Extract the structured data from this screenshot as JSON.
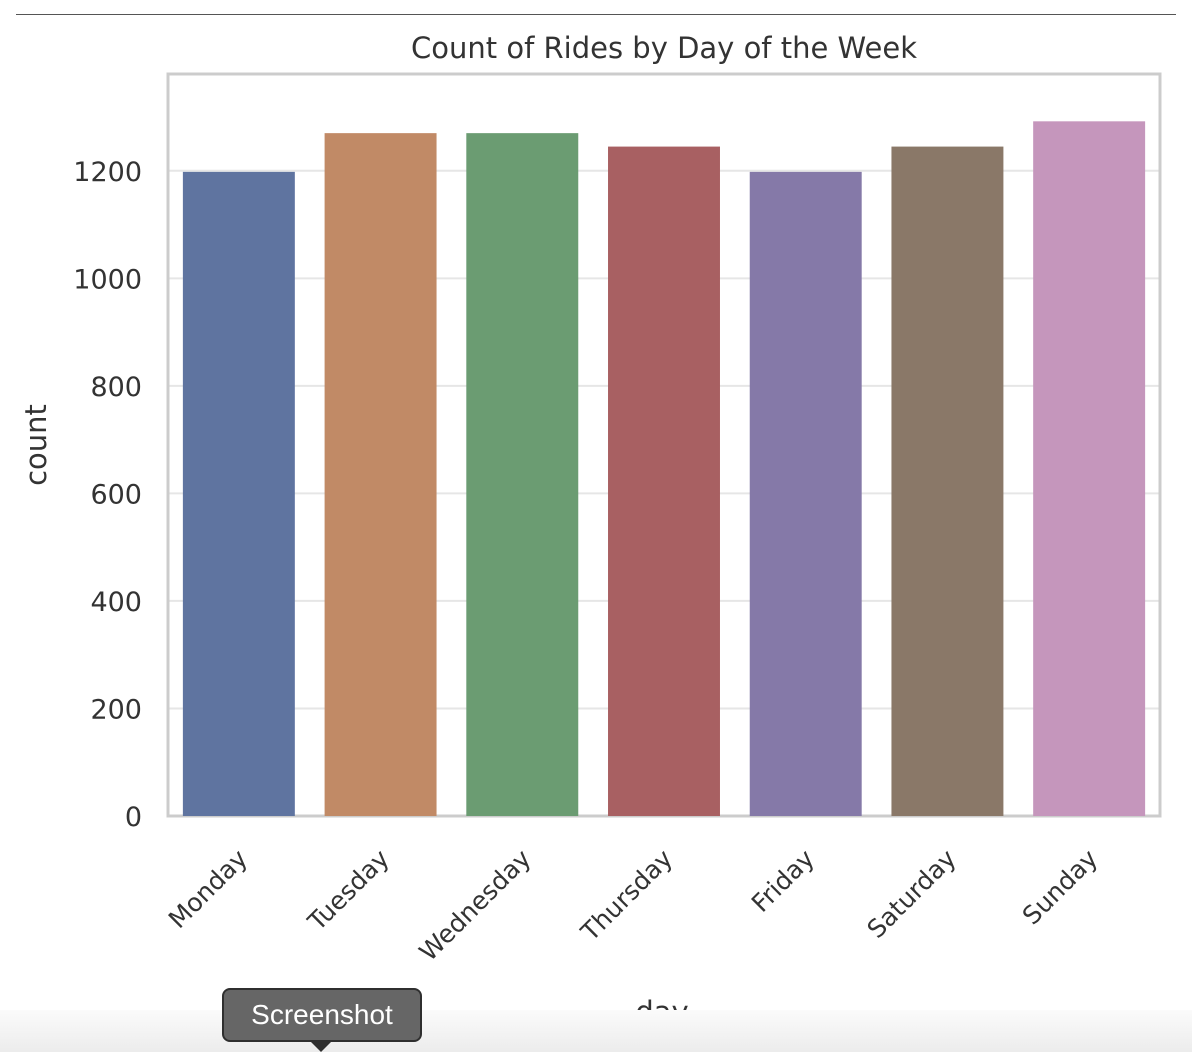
{
  "chart_data": {
    "type": "bar",
    "title": "Count of Rides by Day of the Week",
    "xlabel": "day",
    "ylabel": "count",
    "categories": [
      "Monday",
      "Tuesday",
      "Wednesday",
      "Thursday",
      "Friday",
      "Saturday",
      "Sunday"
    ],
    "values": [
      1198,
      1270,
      1270,
      1245,
      1198,
      1245,
      1292
    ],
    "colors": [
      "#5f74a0",
      "#c18a66",
      "#6b9c72",
      "#a86062",
      "#8579a8",
      "#8a7868",
      "#c596bc"
    ],
    "yticks": [
      0,
      200,
      400,
      600,
      800,
      1000,
      1200
    ],
    "ylim": [
      0,
      1380
    ],
    "grid": true,
    "legend": "none"
  },
  "tooltip": {
    "label": "Screenshot"
  }
}
